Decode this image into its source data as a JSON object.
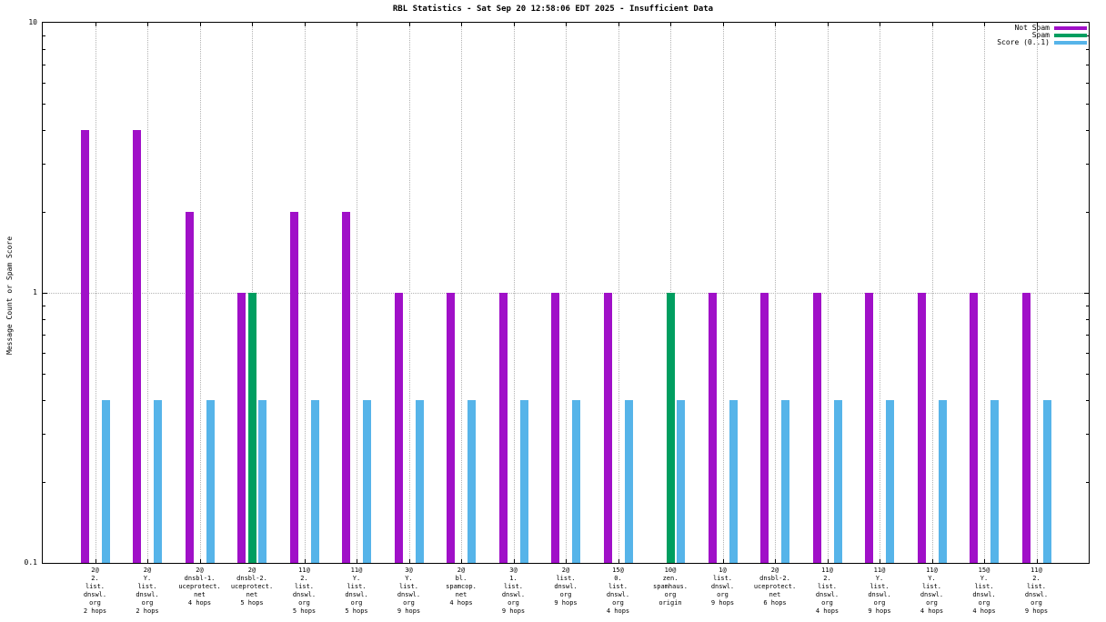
{
  "chart_data": {
    "type": "bar",
    "title": "RBL Statistics - Sat Sep 20 12:58:06 EDT 2025 - Insufficient Data",
    "ylabel": "Message Count or Spam Score",
    "scale": "log-y",
    "ylim": [
      0.1,
      10
    ],
    "yticks": [
      10,
      1,
      0.1
    ],
    "grid": {
      "vertical_dotted_per_category": true,
      "horizontal_dotted_at": 1
    },
    "legend_position": "top-right",
    "categories": [
      [
        "2@",
        "2.",
        "list.",
        "dnswl.",
        "org",
        "2 hops"
      ],
      [
        "2@",
        "Y.",
        "list.",
        "dnswl.",
        "org",
        "2 hops"
      ],
      [
        "2@",
        "dnsbl-1.",
        "uceprotect.",
        "net",
        "4 hops"
      ],
      [
        "2@",
        "dnsbl-2.",
        "uceprotect.",
        "net",
        "5 hops"
      ],
      [
        "11@",
        "2.",
        "list.",
        "dnswl.",
        "org",
        "5 hops"
      ],
      [
        "11@",
        "Y.",
        "list.",
        "dnswl.",
        "org",
        "5 hops"
      ],
      [
        "3@",
        "Y.",
        "list.",
        "dnswl.",
        "org",
        "9 hops"
      ],
      [
        "2@",
        "bl.",
        "spamcop.",
        "net",
        "4 hops"
      ],
      [
        "3@",
        "1.",
        "list.",
        "dnswl.",
        "org",
        "9 hops"
      ],
      [
        "2@",
        "list.",
        "dnswl.",
        "org",
        "9 hops"
      ],
      [
        "15@",
        "0.",
        "list.",
        "dnswl.",
        "org",
        "4 hops"
      ],
      [
        "10@",
        "zen.",
        "spamhaus.",
        "org",
        "origin"
      ],
      [
        "1@",
        "list.",
        "dnswl.",
        "org",
        "9 hops"
      ],
      [
        "2@",
        "dnsbl-2.",
        "uceprotect.",
        "net",
        "6 hops"
      ],
      [
        "11@",
        "2.",
        "list.",
        "dnswl.",
        "org",
        "4 hops"
      ],
      [
        "11@",
        "Y.",
        "list.",
        "dnswl.",
        "org",
        "9 hops"
      ],
      [
        "11@",
        "Y.",
        "list.",
        "dnswl.",
        "org",
        "4 hops"
      ],
      [
        "15@",
        "Y.",
        "list.",
        "dnswl.",
        "org",
        "4 hops"
      ],
      [
        "11@",
        "2.",
        "list.",
        "dnswl.",
        "org",
        "9 hops"
      ]
    ],
    "series": [
      {
        "name": "Not Spam",
        "color": "#a010c8",
        "values": [
          4,
          4,
          2,
          1,
          2,
          2,
          1,
          1,
          1,
          1,
          1,
          0,
          1,
          1,
          1,
          1,
          1,
          1,
          1
        ]
      },
      {
        "name": "Spam",
        "color": "#009e60",
        "values": [
          0,
          0,
          0,
          1,
          0,
          0,
          0,
          0,
          0,
          0,
          0,
          1,
          0,
          0,
          0,
          0,
          0,
          0,
          0
        ]
      },
      {
        "name": "Score (0..1)",
        "color": "#56b4e9",
        "values": [
          0.4,
          0.4,
          0.4,
          0.4,
          0.4,
          0.4,
          0.4,
          0.4,
          0.4,
          0.4,
          0.4,
          0.4,
          0.4,
          0.4,
          0.4,
          0.4,
          0.4,
          0.4,
          0.4
        ]
      }
    ]
  }
}
